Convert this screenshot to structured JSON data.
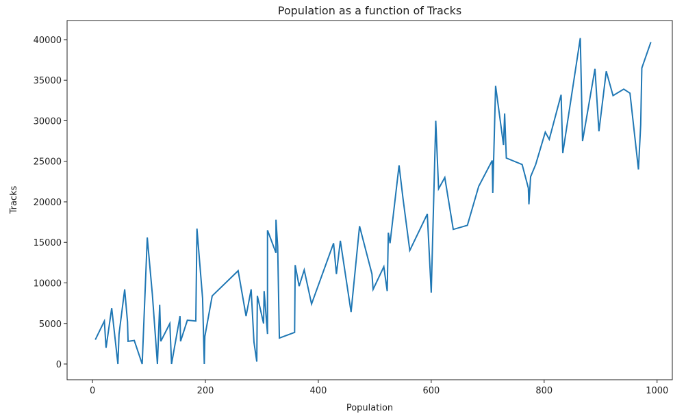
{
  "chart_data": {
    "type": "line",
    "title": "Population as a function of Tracks",
    "x_label": "Population",
    "y_label": "Tracks",
    "x": [
      5,
      21,
      24,
      34,
      45,
      47,
      57,
      62,
      63,
      74,
      88,
      97,
      106,
      115,
      119,
      121,
      137,
      140,
      155,
      156,
      168,
      183,
      185,
      195,
      198,
      199,
      212,
      258,
      272,
      281,
      286,
      291,
      292,
      303,
      304,
      310,
      310,
      325,
      325,
      328,
      331,
      358,
      359,
      366,
      375,
      388,
      427,
      432,
      439,
      458,
      473,
      495,
      497,
      516,
      522,
      524,
      527,
      543,
      550,
      562,
      593,
      600,
      608,
      613,
      624,
      639,
      664,
      684,
      708,
      709,
      714,
      728,
      730,
      733,
      761,
      772,
      773,
      776,
      785,
      802,
      809,
      830,
      833,
      864,
      868,
      890,
      897,
      910,
      922,
      941,
      952,
      967,
      971,
      973,
      989
    ],
    "series": [
      {
        "name": "Tracks",
        "color": "#1f77b4",
        "values": [
          3000,
          5300,
          2000,
          6900,
          0,
          3700,
          9200,
          5200,
          2800,
          2900,
          0,
          15600,
          8600,
          0,
          7300,
          2800,
          5000,
          0,
          5900,
          2800,
          5400,
          5300,
          16700,
          8100,
          0,
          3400,
          8400,
          11500,
          5900,
          9200,
          2700,
          300,
          8400,
          5000,
          9000,
          3700,
          16500,
          13700,
          17800,
          14500,
          3200,
          3900,
          12200,
          9600,
          11600,
          7400,
          14900,
          11100,
          15200,
          6400,
          17000,
          11100,
          9200,
          12000,
          9000,
          16200,
          14900,
          24500,
          20400,
          14000,
          18500,
          8800,
          30000,
          21600,
          23000,
          16600,
          17100,
          21900,
          25100,
          21100,
          34300,
          27000,
          30900,
          25400,
          24600,
          21700,
          19700,
          23100,
          24600,
          28600,
          27700,
          33200,
          26000,
          40200,
          27500,
          36400,
          28700,
          36100,
          33100,
          33900,
          33400,
          24000,
          29500,
          36500,
          39700
        ]
      }
    ],
    "xlim": [
      -45,
      1027
    ],
    "ylim": [
      -1940,
      42360
    ],
    "xticks": [
      0,
      200,
      400,
      600,
      800,
      1000
    ],
    "yticks": [
      0,
      5000,
      10000,
      15000,
      20000,
      25000,
      30000,
      35000,
      40000
    ]
  }
}
